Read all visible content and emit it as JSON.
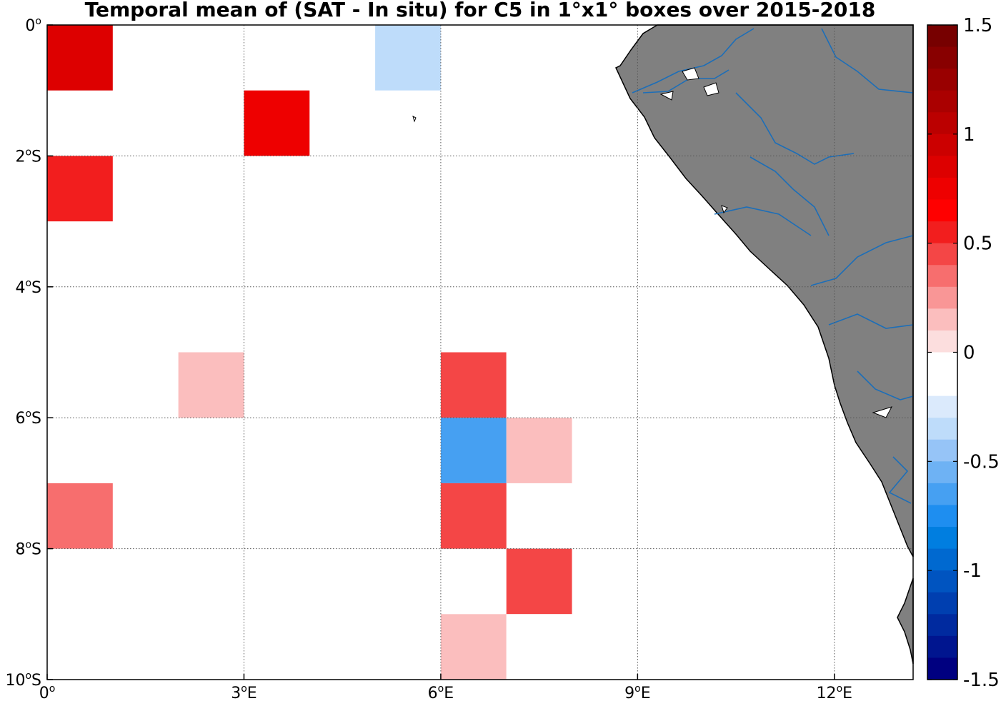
{
  "chart_data": {
    "type": "heatmap",
    "title": "Temporal mean of (SAT - In situ) for C5 in 1°x1° boxes over 2015-2018",
    "xlim": [
      0,
      13.2
    ],
    "ylim": [
      -10,
      0
    ],
    "grid": true,
    "x_ticks": [
      {
        "value": 0,
        "label": "0",
        "sup": "o",
        "suffix": ""
      },
      {
        "value": 3,
        "label": "3",
        "sup": "o",
        "suffix": "E"
      },
      {
        "value": 6,
        "label": "6",
        "sup": "o",
        "suffix": "E"
      },
      {
        "value": 9,
        "label": "9",
        "sup": "o",
        "suffix": "E"
      },
      {
        "value": 12,
        "label": "12",
        "sup": "o",
        "suffix": "E"
      }
    ],
    "y_ticks": [
      {
        "value": 0,
        "label": "0",
        "sup": "o",
        "suffix": ""
      },
      {
        "value": -2,
        "label": "2",
        "sup": "o",
        "suffix": "S"
      },
      {
        "value": -4,
        "label": "4",
        "sup": "o",
        "suffix": "S"
      },
      {
        "value": -6,
        "label": "6",
        "sup": "o",
        "suffix": "S"
      },
      {
        "value": -8,
        "label": "8",
        "sup": "o",
        "suffix": "S"
      },
      {
        "value": -10,
        "label": "10",
        "sup": "o",
        "suffix": "S"
      }
    ],
    "cells": [
      {
        "lon": 0,
        "lat": 0,
        "value": 0.85
      },
      {
        "lon": 5,
        "lat": 0,
        "value": -0.3
      },
      {
        "lon": 3,
        "lat": -1,
        "value": 0.75
      },
      {
        "lon": 0,
        "lat": -2,
        "value": 0.5
      },
      {
        "lon": 2,
        "lat": -5,
        "value": 0.15
      },
      {
        "lon": 6,
        "lat": -5,
        "value": 0.4
      },
      {
        "lon": 7,
        "lat": -5,
        "value": -0.2
      },
      {
        "lon": 6,
        "lat": -6,
        "value": -0.7
      },
      {
        "lon": 7,
        "lat": -6,
        "value": 0.15
      },
      {
        "lon": 0,
        "lat": -7,
        "value": 0.3
      },
      {
        "lon": 6,
        "lat": -7,
        "value": 0.4
      },
      {
        "lon": 7,
        "lat": -8,
        "value": 0.45
      },
      {
        "lon": 10,
        "lat": -8,
        "value": -0.1
      },
      {
        "lon": 6,
        "lat": -9,
        "value": 0.15
      },
      {
        "lon": 7,
        "lat": -9,
        "value": -0.2
      },
      {
        "lon": 10,
        "lat": -9,
        "value": -0.2
      }
    ],
    "colorbar": {
      "min": -1.5,
      "max": 1.5,
      "tick_labels": [
        "1.5",
        "1",
        "0.5",
        "0",
        "-0.5",
        "-1",
        "-1.5"
      ],
      "colors": [
        "#000080",
        "#00158f",
        "#002a9f",
        "#003fb0",
        "#0054c0",
        "#0069d0",
        "#007ee0",
        "#1e8ef0",
        "#46a0f2",
        "#6eb2f4",
        "#96c4f7",
        "#bedcfa",
        "#dbeafc",
        "#ffffff",
        "#ffffff",
        "#fcdede",
        "#fbbebe",
        "#f99696",
        "#f76e6e",
        "#f44646",
        "#f21e1e",
        "#ff0000",
        "#ee0000",
        "#dd0000",
        "#cc0000",
        "#bb0000",
        "#aa0000",
        "#990000",
        "#880000",
        "#770000"
      ]
    },
    "land_color": "#808080",
    "river_color": "#1c6eb8"
  }
}
